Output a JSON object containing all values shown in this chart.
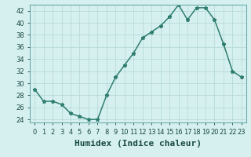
{
  "x": [
    0,
    1,
    2,
    3,
    4,
    5,
    6,
    7,
    8,
    9,
    10,
    11,
    12,
    13,
    14,
    15,
    16,
    17,
    18,
    19,
    20,
    21,
    22,
    23
  ],
  "y": [
    29,
    27,
    27,
    26.5,
    25,
    24.5,
    24,
    24,
    28,
    31,
    33,
    35,
    37.5,
    38.5,
    39.5,
    41,
    43,
    40.5,
    42.5,
    42.5,
    40.5,
    36.5,
    32,
    31
  ],
  "line_color": "#2e7d6e",
  "marker": "*",
  "marker_size": 3.5,
  "bg_color": "#d6f0f0",
  "grid_color": "#b8dada",
  "xlabel": "Humidex (Indice chaleur)",
  "xlabel_fontsize": 8,
  "ylim": [
    23.5,
    43
  ],
  "xlim": [
    -0.5,
    23.5
  ],
  "yticks": [
    24,
    26,
    28,
    30,
    32,
    34,
    36,
    38,
    40,
    42
  ],
  "xticks": [
    0,
    1,
    2,
    3,
    4,
    5,
    6,
    7,
    8,
    9,
    10,
    11,
    12,
    13,
    14,
    15,
    16,
    17,
    18,
    19,
    20,
    21,
    22,
    23
  ],
  "tick_fontsize": 6,
  "line_width": 1.1,
  "spine_color": "#6aada8",
  "tick_color": "#1a4a44",
  "xlabel_color": "#1a4a44",
  "xlabel_bold": true
}
